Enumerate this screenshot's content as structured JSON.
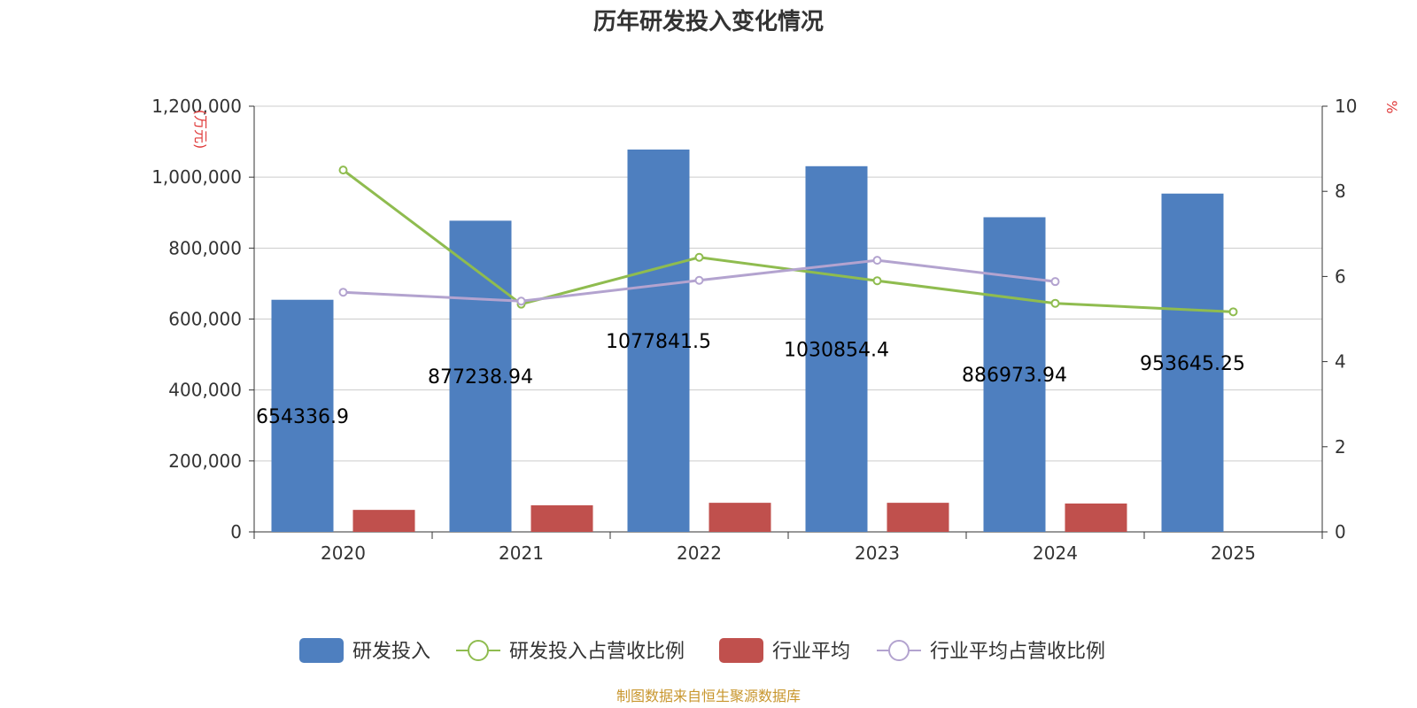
{
  "chart_data": {
    "type": "bar",
    "title": "历年研发投入变化情况",
    "categories": [
      "2020",
      "2021",
      "2022",
      "2023",
      "2024",
      "2025"
    ],
    "left_axis": {
      "unit": "(万元)",
      "range": [
        0,
        1200000
      ],
      "ticks": [
        "0",
        "200,000",
        "400,000",
        "600,000",
        "800,000",
        "1,000,000",
        "1,200,000"
      ]
    },
    "right_axis": {
      "unit": "%",
      "range": [
        0,
        10
      ],
      "ticks": [
        "0",
        "2",
        "4",
        "6",
        "8",
        "10"
      ]
    },
    "series": [
      {
        "name": "研发投入",
        "kind": "bar",
        "axis": "left",
        "color": "#4e7fbf",
        "values": [
          654336.9,
          877238.94,
          1077841.5,
          1030854.4,
          886973.94,
          953645.25
        ],
        "labels": [
          "654336.9",
          "877238.94",
          "1077841.5",
          "1030854.4",
          "886973.94",
          "953645.25"
        ]
      },
      {
        "name": "研发投入占营收比例",
        "kind": "line",
        "axis": "right",
        "color": "#8fbc4f",
        "values": [
          8.5,
          5.35,
          6.45,
          5.9,
          5.37,
          5.17
        ]
      },
      {
        "name": "行业平均",
        "kind": "bar",
        "axis": "left",
        "color": "#c0504d",
        "values": [
          62000,
          75000,
          82000,
          82000,
          80000,
          null
        ]
      },
      {
        "name": "行业平均占营收比例",
        "kind": "line",
        "axis": "right",
        "color": "#b3a3cf",
        "values": [
          5.63,
          5.42,
          5.91,
          6.38,
          5.88,
          null
        ]
      }
    ],
    "grid": true,
    "legend_position": "bottom"
  },
  "source": "制图数据来自恒生聚源数据库"
}
